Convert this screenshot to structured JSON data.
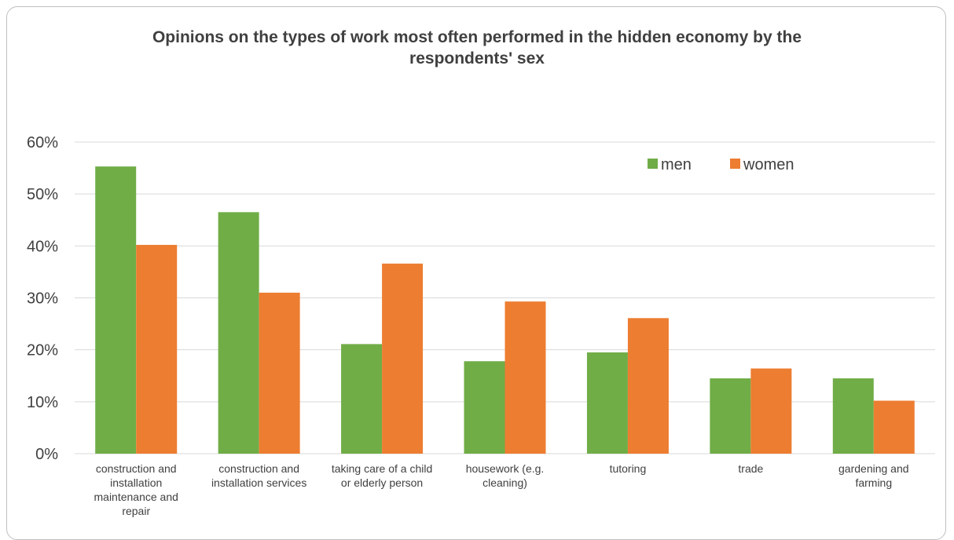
{
  "chart_data": {
    "type": "bar",
    "title": "Opinions on the types of work most often performed in the hidden economy by the respondents' sex",
    "categories": [
      "construction and installation maintenance and repair",
      "construction and installation services",
      "taking care of a child or elderly person",
      "housework (e.g. cleaning)",
      "tutoring",
      "trade",
      "gardening and farming"
    ],
    "category_lines": [
      [
        "construction and",
        "installation",
        "maintenance and",
        "repair"
      ],
      [
        "construction and",
        "installation services"
      ],
      [
        "taking care of a child",
        "or elderly person"
      ],
      [
        "housework (e.g.",
        "cleaning)"
      ],
      [
        "tutoring"
      ],
      [
        "trade"
      ],
      [
        "gardening and",
        "farming"
      ]
    ],
    "series": [
      {
        "name": "men",
        "color": "#70ad47",
        "values": [
          55.3,
          46.5,
          21.1,
          17.8,
          19.5,
          14.5,
          14.5
        ]
      },
      {
        "name": "women",
        "color": "#ed7d31",
        "values": [
          40.2,
          31.0,
          36.6,
          29.3,
          26.1,
          16.4,
          10.2
        ]
      }
    ],
    "ylim": [
      0,
      60
    ],
    "yticks": [
      0,
      10,
      20,
      30,
      40,
      50,
      60
    ],
    "ytick_labels": [
      "0%",
      "10%",
      "20%",
      "30%",
      "40%",
      "50%",
      "60%"
    ],
    "xlabel": "",
    "ylabel": "",
    "grid": true,
    "legend_position": "top-right"
  }
}
